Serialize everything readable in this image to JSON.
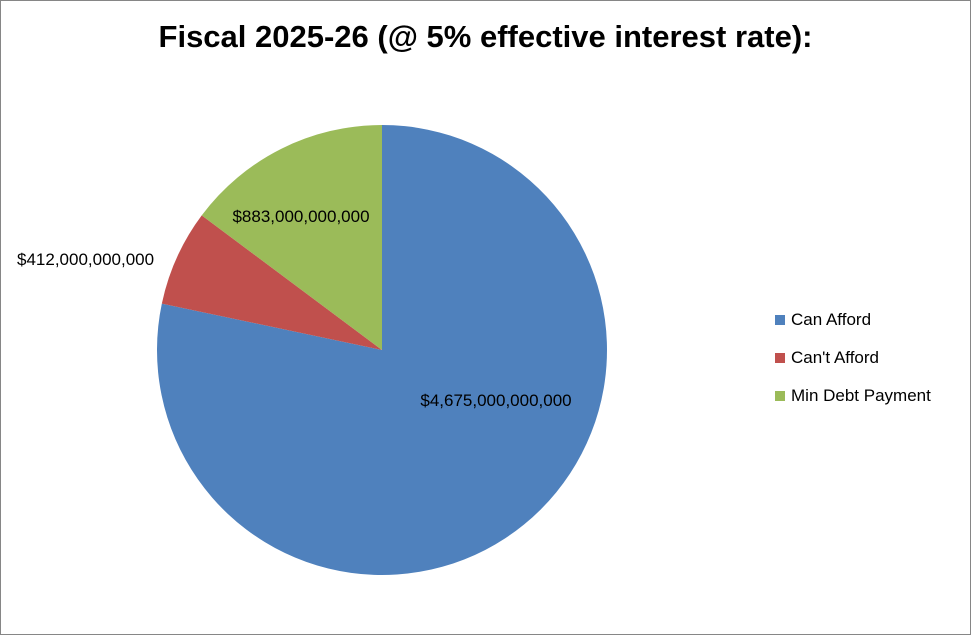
{
  "chart_data": {
    "type": "pie",
    "title": "Fiscal 2025-26 (@ 5% effective interest rate):",
    "slices": [
      {
        "name": "Can Afford",
        "value": 4675000000000,
        "label": "$4,675,000,000,000",
        "color": "#4F81BD"
      },
      {
        "name": "Can't Afford",
        "value": 412000000000,
        "label": "$412,000,000,000",
        "color": "#C0504D"
      },
      {
        "name": "Min Debt Payment",
        "value": 883000000000,
        "label": "$883,000,000,000",
        "color": "#9BBB59"
      }
    ],
    "legend_position": "right"
  }
}
